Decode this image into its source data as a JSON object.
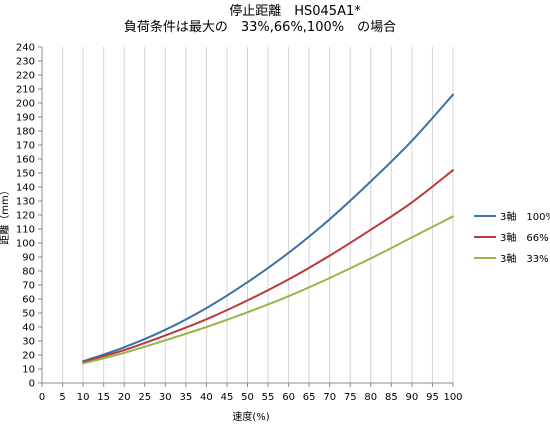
{
  "chart_data": {
    "type": "line",
    "title": "停止距離　HS045A1*",
    "subtitle": "負荷条件は最大の　33%,66%,100%　の場合",
    "xlabel": "速度(%)",
    "ylabel": "距離（mm）",
    "x": [
      10,
      20,
      30,
      40,
      50,
      60,
      70,
      80,
      90,
      100
    ],
    "xticks": [
      0,
      5,
      10,
      15,
      20,
      25,
      30,
      35,
      40,
      45,
      50,
      55,
      60,
      65,
      70,
      75,
      80,
      85,
      90,
      95,
      100
    ],
    "yticks": [
      0,
      10,
      20,
      30,
      40,
      50,
      60,
      70,
      80,
      90,
      100,
      110,
      120,
      130,
      140,
      150,
      160,
      170,
      180,
      190,
      200,
      210,
      220,
      230,
      240
    ],
    "xlim": [
      0,
      100
    ],
    "ylim": [
      0,
      240
    ],
    "grid": "vertical",
    "legend_position": "right",
    "series": [
      {
        "name": "3軸　100%",
        "color": "#3d6fa8",
        "values": [
          15.5,
          25.5,
          38,
          53.5,
          72,
          93,
          117,
          144,
          173,
          206
        ]
      },
      {
        "name": "3軸　66%",
        "color": "#b83a3a",
        "values": [
          15,
          23.5,
          34,
          45.5,
          59,
          74,
          91,
          109.5,
          129,
          152
        ]
      },
      {
        "name": "3軸　33%",
        "color": "#96b54c",
        "values": [
          14,
          21.5,
          30.5,
          40,
          50.5,
          62,
          75,
          89,
          104,
          119
        ]
      }
    ]
  }
}
